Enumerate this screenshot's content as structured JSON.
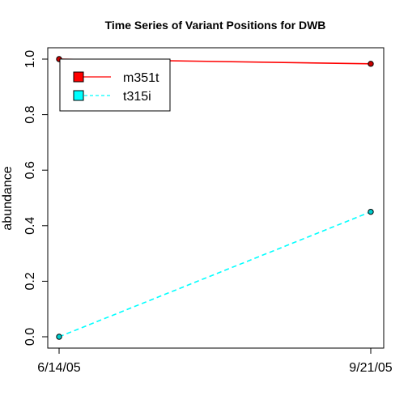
{
  "chart_data": {
    "type": "line",
    "title": "Time Series of Variant Positions for DWB",
    "xlabel": "",
    "ylabel": "abundance",
    "x": [
      "6/14/05",
      "9/21/05"
    ],
    "ylim": [
      0,
      1
    ],
    "yticks": [
      "0.0",
      "0.2",
      "0.4",
      "0.6",
      "0.8",
      "1.0"
    ],
    "grid": false,
    "legend_position": "top-left",
    "series": [
      {
        "name": "m351t",
        "values": [
          1.0,
          0.983
        ],
        "color": "#ff0000",
        "line_style": "solid",
        "marker_fill": "#cc0000"
      },
      {
        "name": "t315i",
        "values": [
          0.0,
          0.45
        ],
        "color": "#00ffff",
        "line_style": "dashed",
        "marker_fill": "#00cccc"
      }
    ]
  }
}
